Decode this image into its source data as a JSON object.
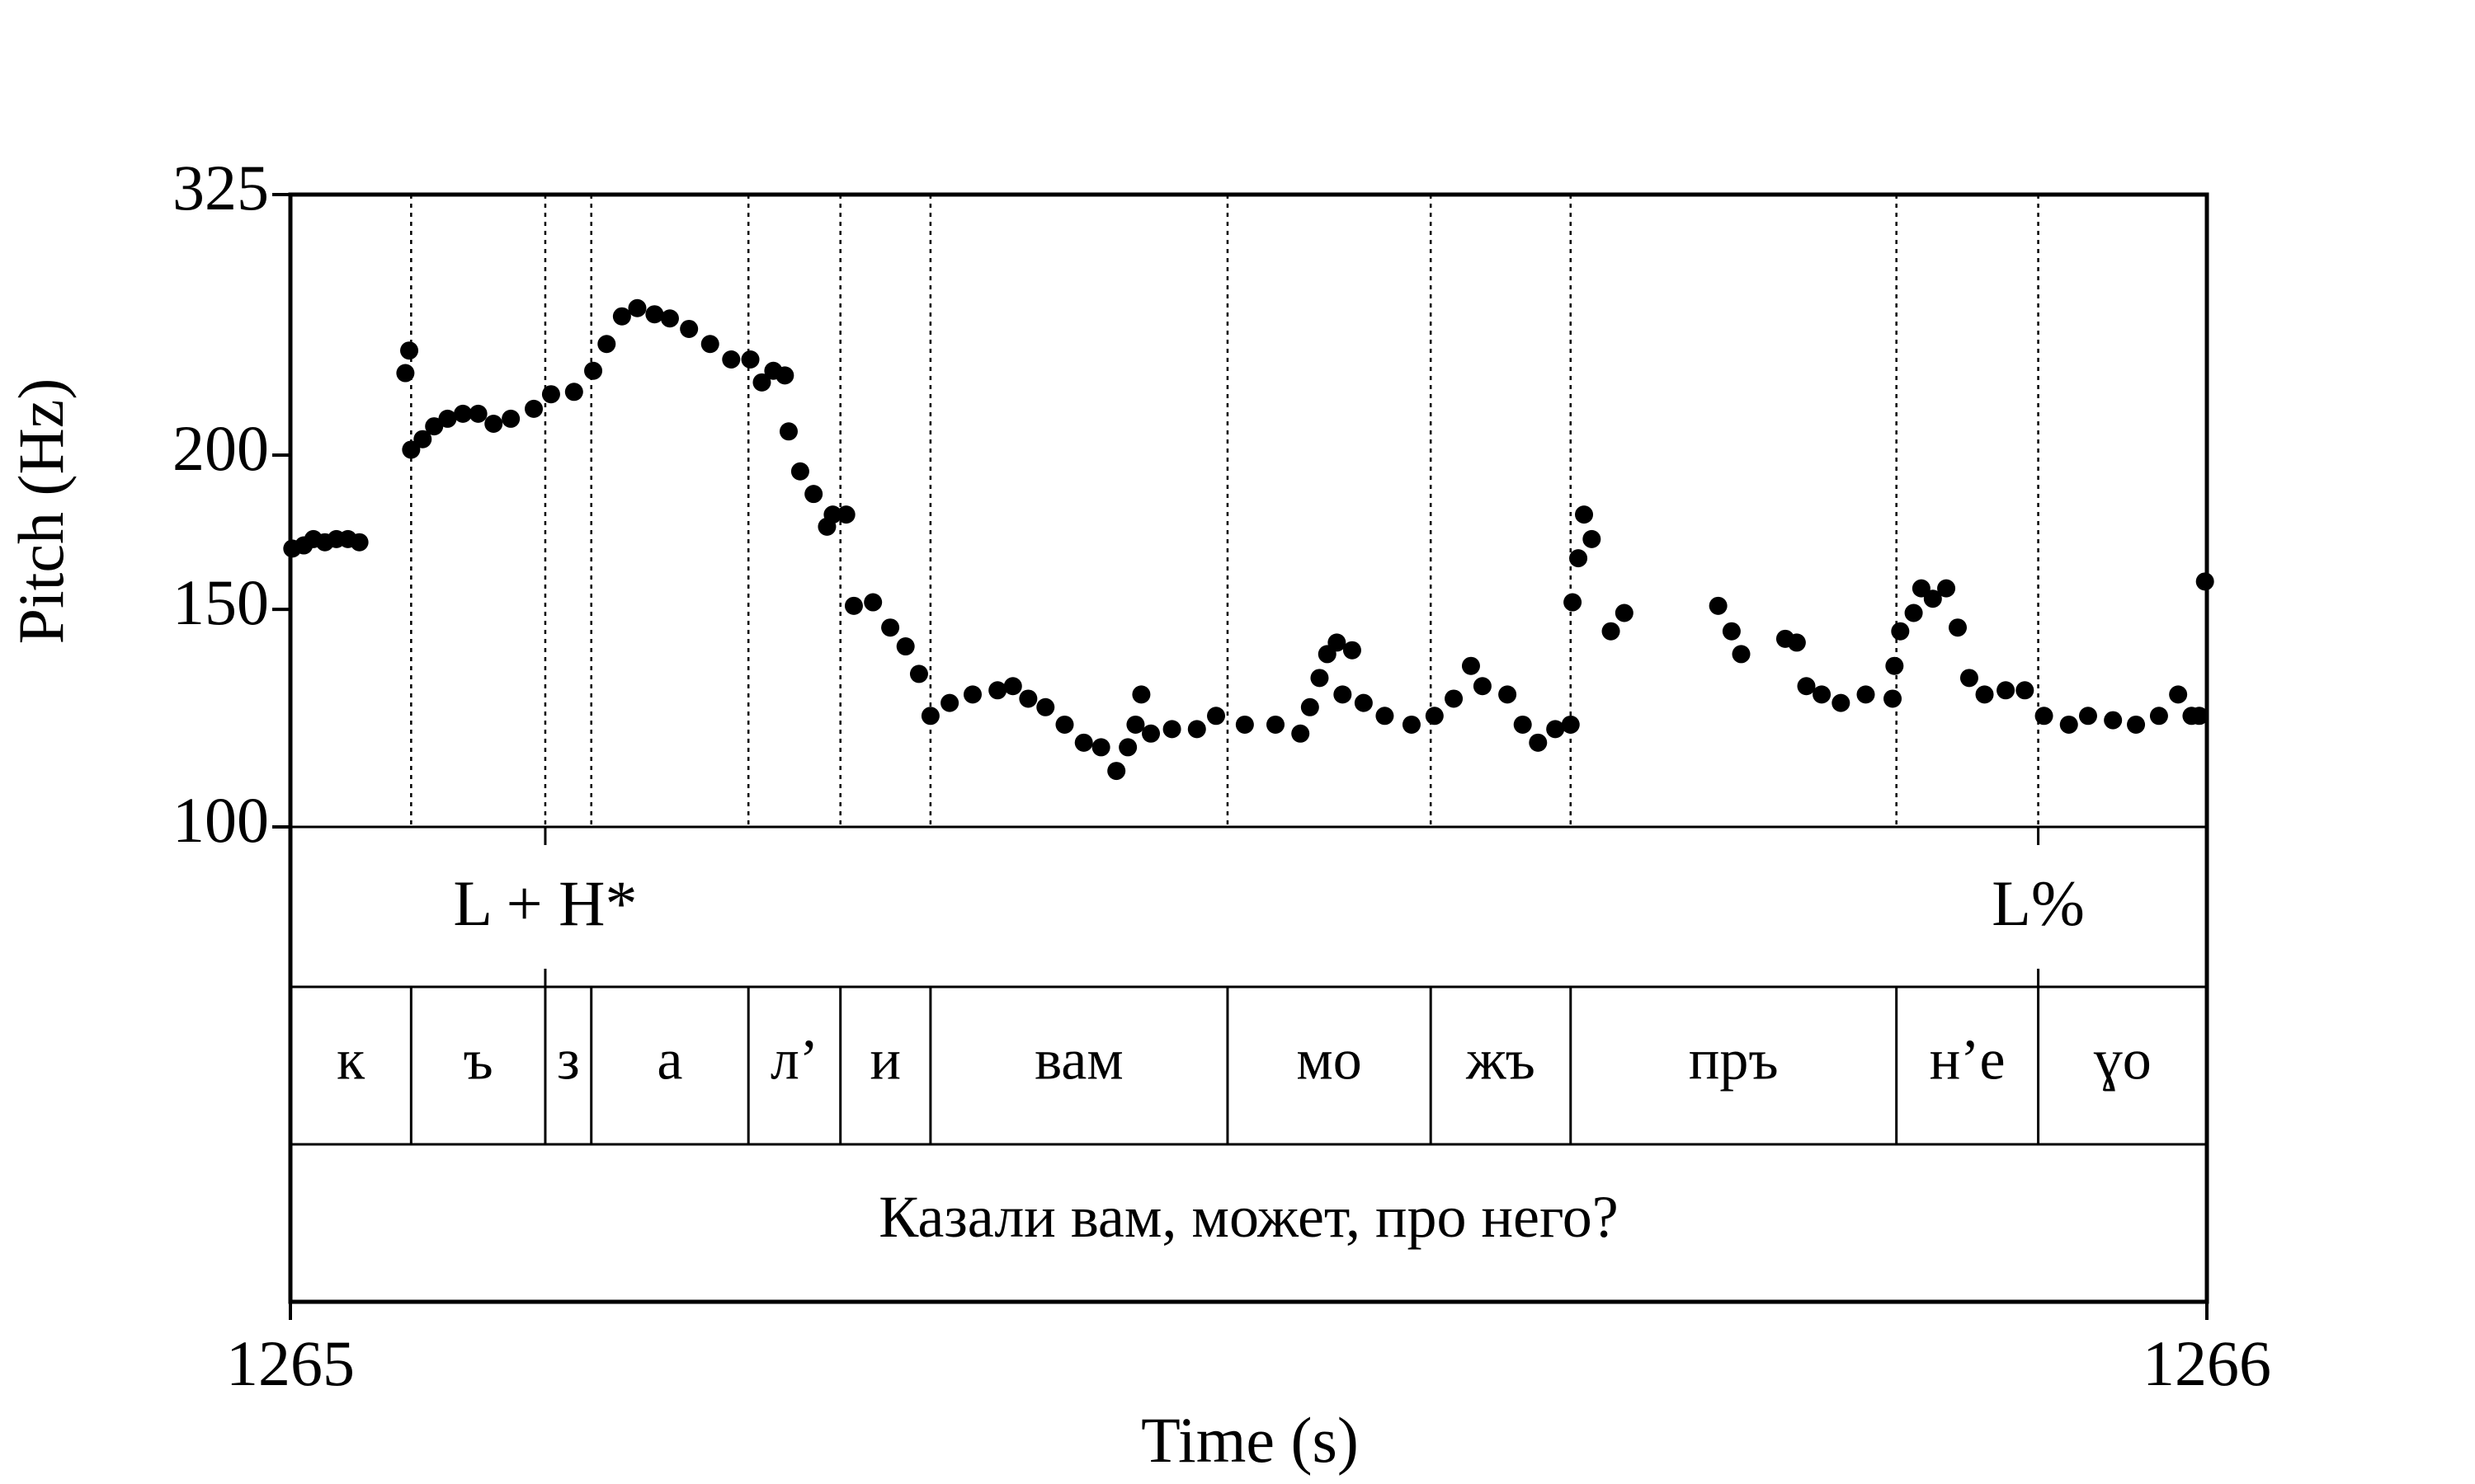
{
  "chart_data": {
    "type": "scatter",
    "x_label": "Time (s)",
    "y_label": "Pitch (Hz)",
    "log_y": true,
    "color": "#000000",
    "xlim": [
      1265,
      1266
    ],
    "xticks": [
      1265,
      1266
    ],
    "ylim": [
      100,
      325
    ],
    "yticks": [
      100,
      150,
      200,
      325
    ],
    "x": [
      1265.001,
      1265.007,
      1265.012,
      1265.018,
      1265.024,
      1265.03,
      1265.036,
      1265.06,
      1265.062,
      1265.063,
      1265.069,
      1265.075,
      1265.082,
      1265.09,
      1265.098,
      1265.106,
      1265.115,
      1265.127,
      1265.136,
      1265.148,
      1265.158,
      1265.165,
      1265.173,
      1265.181,
      1265.19,
      1265.198,
      1265.208,
      1265.219,
      1265.23,
      1265.24,
      1265.246,
      1265.252,
      1265.258,
      1265.26,
      1265.266,
      1265.273,
      1265.28,
      1265.283,
      1265.29,
      1265.294,
      1265.304,
      1265.313,
      1265.321,
      1265.328,
      1265.334,
      1265.344,
      1265.356,
      1265.369,
      1265.377,
      1265.385,
      1265.394,
      1265.404,
      1265.414,
      1265.423,
      1265.431,
      1265.437,
      1265.441,
      1265.444,
      1265.449,
      1265.46,
      1265.473,
      1265.483,
      1265.498,
      1265.514,
      1265.527,
      1265.532,
      1265.537,
      1265.541,
      1265.546,
      1265.549,
      1265.554,
      1265.56,
      1265.571,
      1265.585,
      1265.597,
      1265.607,
      1265.616,
      1265.622,
      1265.635,
      1265.643,
      1265.651,
      1265.66,
      1265.668,
      1265.669,
      1265.672,
      1265.675,
      1265.679,
      1265.689,
      1265.696,
      1265.745,
      1265.752,
      1265.757,
      1265.78,
      1265.786,
      1265.791,
      1265.799,
      1265.809,
      1265.822,
      1265.836,
      1265.837,
      1265.84,
      1265.847,
      1265.851,
      1265.857,
      1265.864,
      1265.87,
      1265.876,
      1265.884,
      1265.895,
      1265.905,
      1265.915,
      1265.928,
      1265.938,
      1265.951,
      1265.963,
      1265.975,
      1265.985,
      1265.992,
      1265.996,
      1265.999
    ],
    "values": [
      168,
      169,
      171,
      170,
      171,
      171,
      170,
      233,
      243,
      202,
      206,
      211,
      214,
      216,
      216,
      212,
      214,
      218,
      224,
      225,
      234,
      246,
      259,
      263,
      260,
      258,
      253,
      246,
      239,
      239,
      229,
      234,
      232,
      209,
      194,
      186,
      175,
      179,
      179,
      151,
      152,
      145,
      140,
      133,
      123,
      126,
      128,
      129,
      130,
      127,
      125,
      121,
      117,
      116,
      111,
      116,
      121,
      128,
      119,
      120,
      120,
      123,
      121,
      121,
      119,
      125,
      132,
      138,
      141,
      128,
      139,
      126,
      123,
      121,
      123,
      127,
      135,
      130,
      128,
      121,
      117,
      120,
      121,
      152,
      165,
      179,
      171,
      144,
      149,
      151,
      144,
      138,
      142,
      141,
      130,
      128,
      126,
      128,
      127,
      135,
      144,
      149,
      156,
      153,
      156,
      145,
      132,
      128,
      129,
      129,
      123,
      121,
      123,
      122,
      121,
      123,
      128,
      123,
      123,
      158
    ],
    "tones": [
      {
        "time": 1265.133,
        "label": "L + H*"
      },
      {
        "time": 1265.912,
        "label": "L%"
      }
    ],
    "segment_boundaries": [
      1265.063,
      1265.133,
      1265.157,
      1265.239,
      1265.287,
      1265.334,
      1265.489,
      1265.595,
      1265.668,
      1265.838,
      1265.912
    ],
    "segments": [
      "к",
      "ъ",
      "з",
      "а",
      "л’",
      "и",
      "вам",
      "мо",
      "жъ",
      "пръ",
      "н’е",
      "ɣо"
    ],
    "sentence": "Казали вам, может, про него?"
  }
}
